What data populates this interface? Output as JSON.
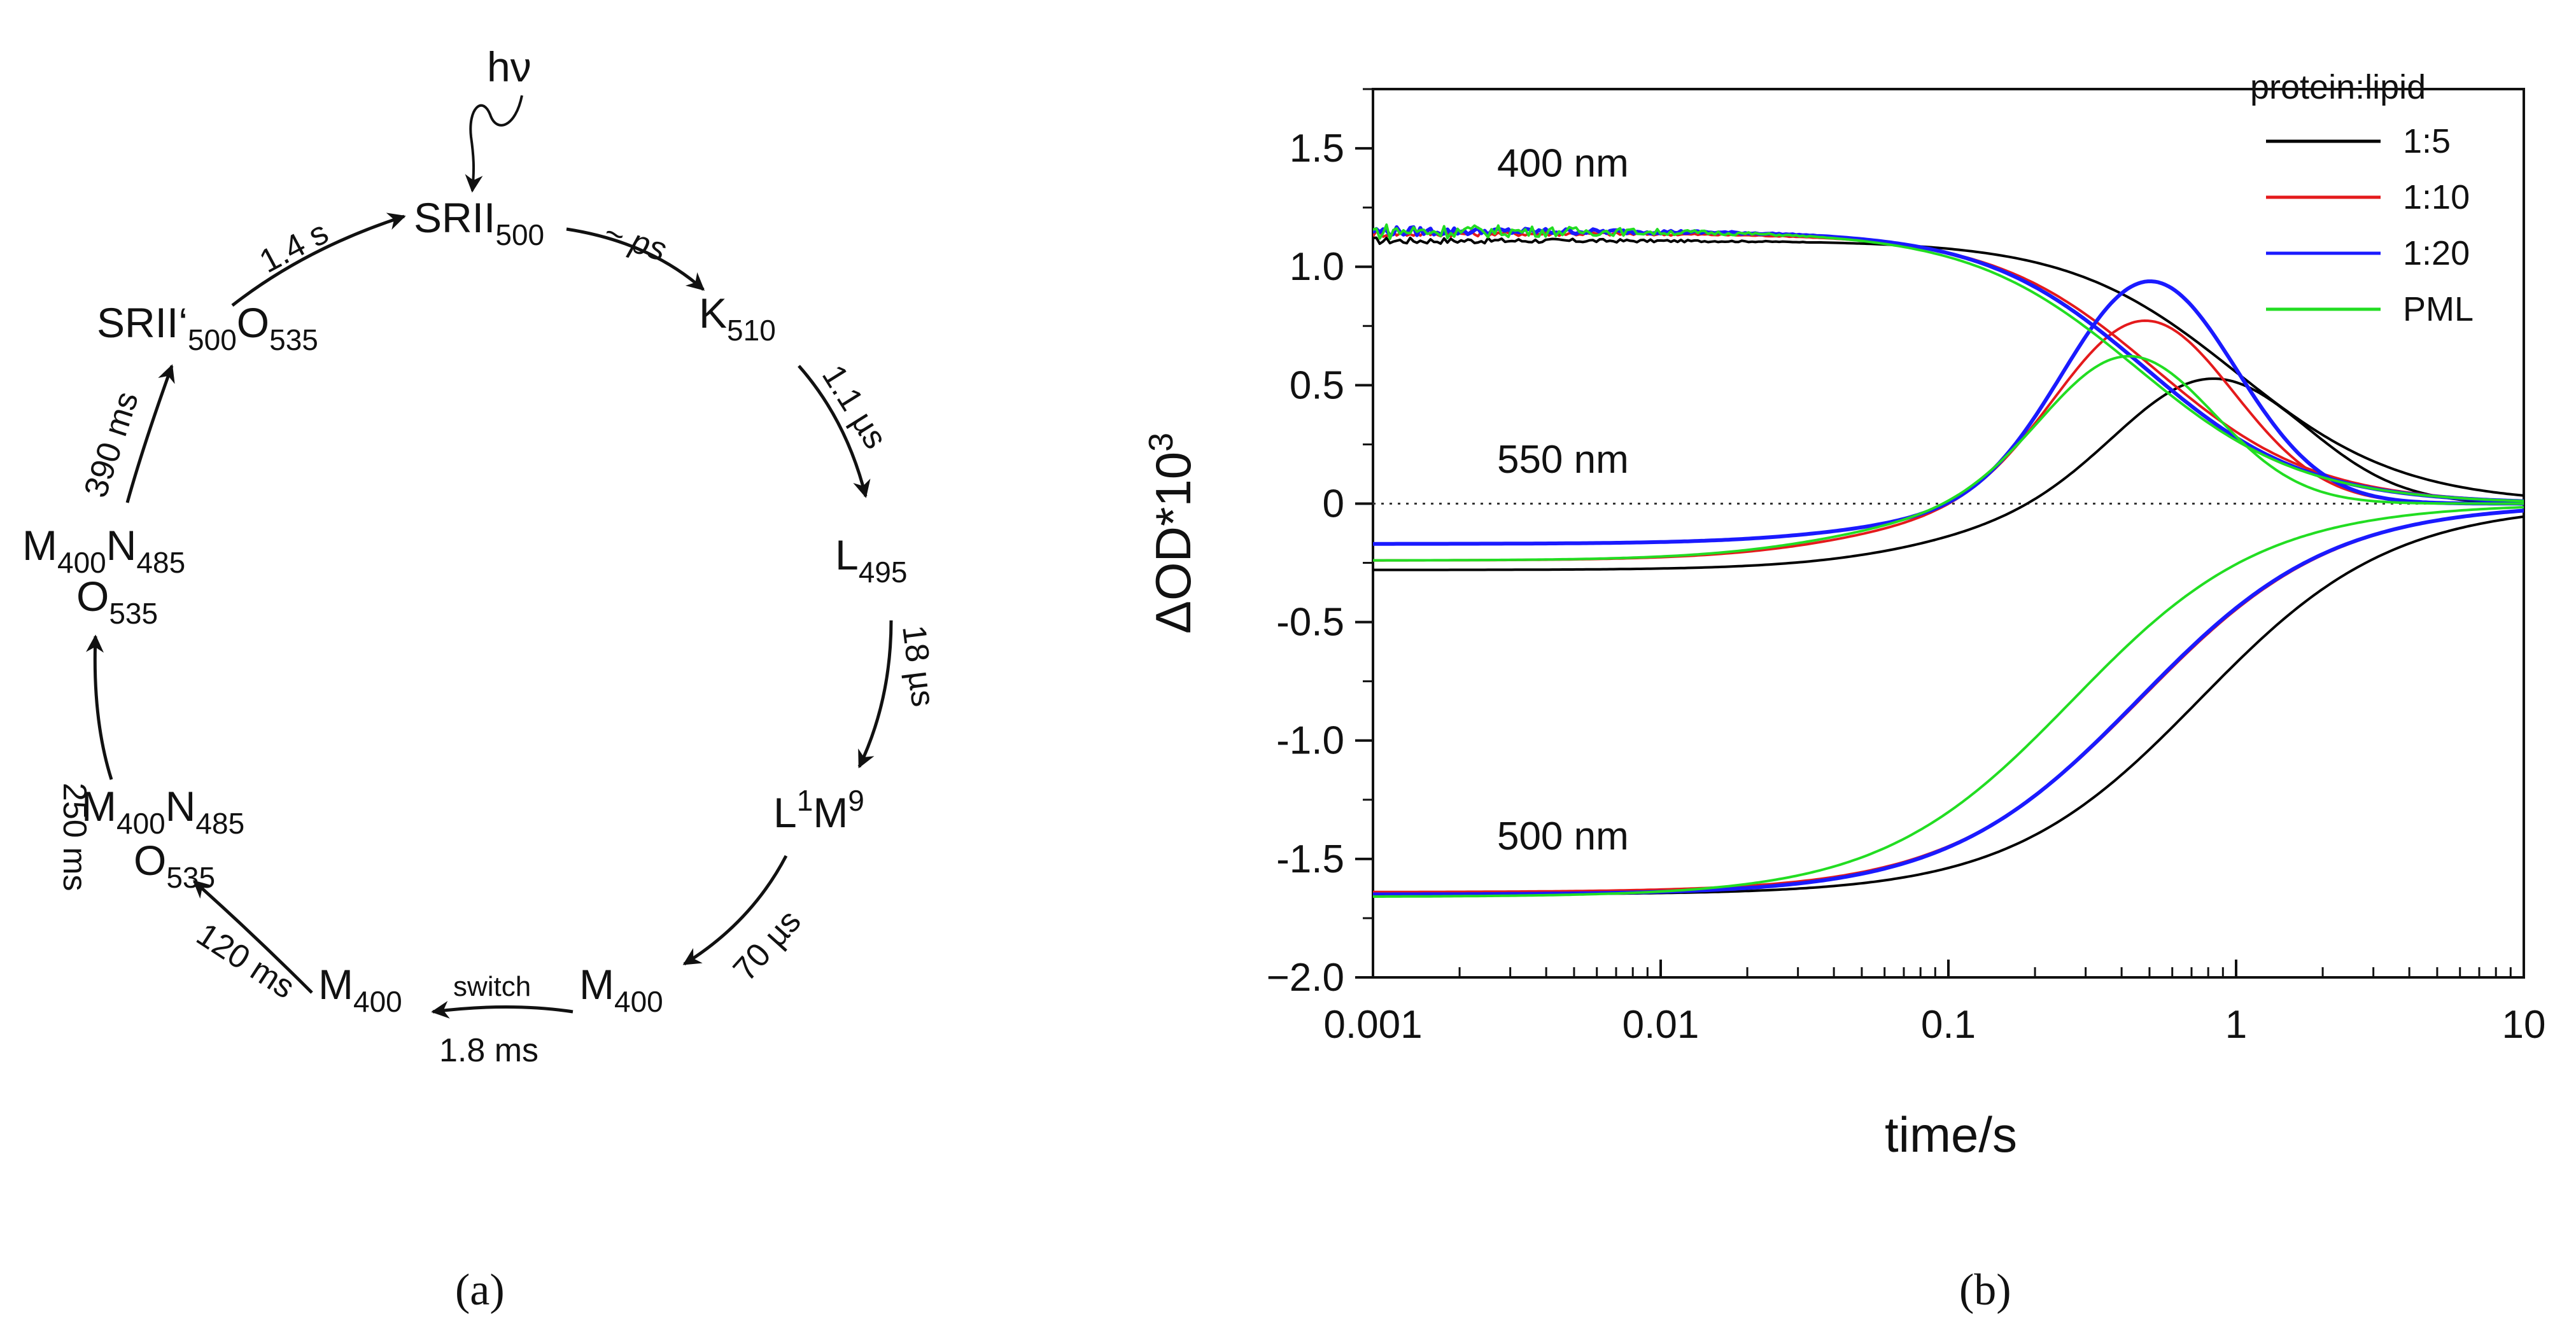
{
  "panel_a": {
    "label": "(a)",
    "photon": "hν",
    "states": [
      {
        "id": "SRII500",
        "parts": [
          [
            "SRII",
            ""
          ],
          [
            "500",
            "sub"
          ]
        ]
      },
      {
        "id": "K510",
        "parts": [
          [
            "K",
            ""
          ],
          [
            "510",
            "sub"
          ]
        ]
      },
      {
        "id": "L495",
        "parts": [
          [
            "L",
            ""
          ],
          [
            "495",
            "sub"
          ]
        ]
      },
      {
        "id": "L1M9",
        "parts": [
          [
            "L",
            ""
          ],
          [
            "1",
            "sup"
          ],
          [
            "M",
            ""
          ],
          [
            "9",
            "sup"
          ]
        ]
      },
      {
        "id": "M400a",
        "parts": [
          [
            "M",
            ""
          ],
          [
            "400",
            "sub"
          ]
        ]
      },
      {
        "id": "M400b",
        "parts": [
          [
            "M",
            ""
          ],
          [
            "400",
            "sub"
          ]
        ]
      },
      {
        "id": "M400N485a",
        "parts": [
          [
            "M",
            ""
          ],
          [
            "400",
            "sub"
          ],
          [
            "N",
            ""
          ],
          [
            "485",
            "sub"
          ]
        ]
      },
      {
        "id": "O535a",
        "parts": [
          [
            "O",
            ""
          ],
          [
            "535",
            "sub"
          ]
        ]
      },
      {
        "id": "M400N485b",
        "parts": [
          [
            "M",
            ""
          ],
          [
            "400",
            "sub"
          ],
          [
            "N",
            ""
          ],
          [
            "485",
            "sub"
          ]
        ]
      },
      {
        "id": "O535b",
        "parts": [
          [
            "O",
            ""
          ],
          [
            "535",
            "sub"
          ]
        ]
      },
      {
        "id": "SRII500O535",
        "parts": [
          [
            "SRII‘",
            ""
          ],
          [
            "500",
            "sub"
          ],
          [
            "O",
            ""
          ],
          [
            "535",
            "sub"
          ]
        ]
      }
    ],
    "rates": {
      "ps": "~ ps",
      "k_l": "1.1 µs",
      "l_m": "18 µs",
      "m_m": "70 µs",
      "switch": "switch",
      "switch_time": "1.8 ms",
      "m_n": "120 ms",
      "n_o": "250 ms",
      "o_sr": "390 ms",
      "return": "1.4 s"
    }
  },
  "panel_b_label": "(b)",
  "chart_data": {
    "type": "line",
    "xscale": "log",
    "xlim": [
      0.001,
      10
    ],
    "ylim": [
      -2.0,
      1.75
    ],
    "xlabel": "time/s",
    "ylabel": "ΔOD*10",
    "ylabel_sup": "3",
    "xticks": [
      {
        "v": 0.001,
        "label": "0.001"
      },
      {
        "v": 0.01,
        "label": "0.01"
      },
      {
        "v": 0.1,
        "label": "0.1"
      },
      {
        "v": 1,
        "label": "1"
      },
      {
        "v": 10,
        "label": "10"
      }
    ],
    "yticks": [
      {
        "v": 1.5,
        "label": "1.5"
      },
      {
        "v": 1.0,
        "label": "1.0"
      },
      {
        "v": 0.5,
        "label": "0.5"
      },
      {
        "v": 0,
        "label": "0"
      },
      {
        "v": -0.5,
        "label": "-0.5"
      },
      {
        "v": -1.0,
        "label": "-1.0"
      },
      {
        "v": -1.5,
        "label": "-1.5"
      },
      {
        "v": -2.0,
        "label": "−2.0"
      }
    ],
    "zero_line": 0,
    "wavelength_labels": [
      {
        "text": "400 nm",
        "x": 0.0027,
        "y": 1.38
      },
      {
        "text": "550 nm",
        "x": 0.0027,
        "y": 0.13
      },
      {
        "text": "500 nm",
        "x": 0.0027,
        "y": -1.46
      }
    ],
    "legend": {
      "title": "protein:lipid",
      "position": "top-right"
    },
    "series": [
      {
        "name": "1:5",
        "color": "#000000",
        "w400": {
          "a0": 1.11,
          "t": 1.0,
          "n": 1.5,
          "noise": 0.015
        },
        "w550": {
          "base": -0.28,
          "amp": 0.538,
          "peak": 0.82,
          "sigma": 0.33,
          "tail": 0.22
        },
        "w500": {
          "a0": -1.65,
          "t": 0.75,
          "n": 1.3
        }
      },
      {
        "name": "1:10",
        "color": "#e41a1c",
        "w400": {
          "a0": 1.14,
          "t": 0.52,
          "n": 1.55,
          "noise": 0.015
        },
        "w550": {
          "base": -0.24,
          "amp": 0.78,
          "peak": 0.48,
          "sigma": 0.31,
          "tail": 0.2
        },
        "w500": {
          "a0": -1.64,
          "t": 0.47,
          "n": 1.3
        }
      },
      {
        "name": "1:20",
        "color": "#1a1aff",
        "w400": {
          "a0": 1.15,
          "t": 0.48,
          "n": 1.55,
          "noise": 0.02
        },
        "w550": {
          "base": -0.17,
          "amp": 0.945,
          "peak": 0.5,
          "sigma": 0.3,
          "tail": 0.22
        },
        "w500": {
          "a0": -1.65,
          "t": 0.46,
          "n": 1.3
        }
      },
      {
        "name": "PML",
        "color": "#22dd22",
        "w400": {
          "a0": 1.15,
          "t": 0.45,
          "n": 1.5,
          "noise": 0.035
        },
        "w550": {
          "base": -0.24,
          "amp": 0.63,
          "peak": 0.42,
          "sigma": 0.3,
          "tail": 0.2
        },
        "w500": {
          "a0": -1.66,
          "t": 0.27,
          "n": 1.3
        }
      }
    ]
  }
}
